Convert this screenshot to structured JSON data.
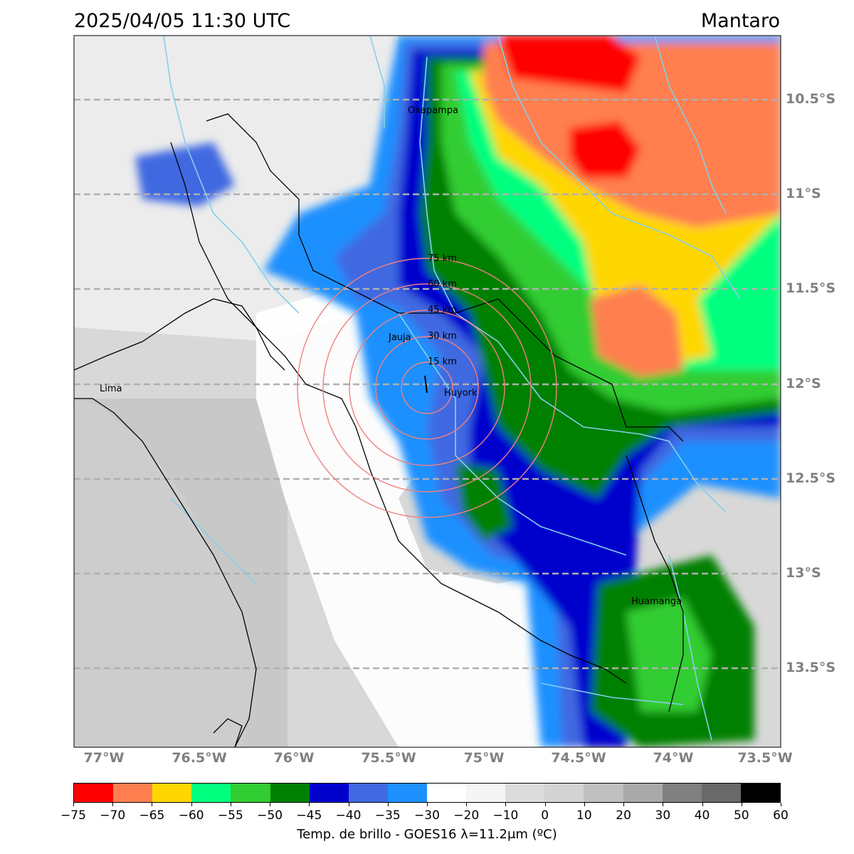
{
  "header": {
    "title": "2025/04/05 11:30 UTC",
    "region": "Mantaro"
  },
  "axes": {
    "lat_labels": [
      "10.5°S",
      "11°S",
      "11.5°S",
      "12°S",
      "12.5°S",
      "13°S",
      "13.5°S"
    ],
    "lon_labels": [
      "77°W",
      "76.5°W",
      "76°W",
      "75.5°W",
      "75°W",
      "74.5°W",
      "74°W",
      "73.5°W"
    ],
    "grid": "dashed"
  },
  "places": [
    {
      "name": "Oxapampa"
    },
    {
      "name": "Jauja"
    },
    {
      "name": "Huyork"
    },
    {
      "name": "Lima"
    },
    {
      "name": "Huamanga"
    }
  ],
  "range_rings": [
    "15 km",
    "30 km",
    "45 km",
    "60 km",
    "75 km"
  ],
  "colorbar": {
    "ticks": [
      "−75",
      "−70",
      "−65",
      "−60",
      "−55",
      "−50",
      "−45",
      "−40",
      "−35",
      "−30",
      "−20",
      "−10",
      "0",
      "10",
      "20",
      "30",
      "40",
      "50",
      "60"
    ],
    "colors": [
      "#ff0000",
      "#ff7f50",
      "#ffd700",
      "#00ff7f",
      "#32cd32",
      "#008000",
      "#0000cd",
      "#4169e1",
      "#1e90ff",
      "#ffffff",
      "#f5f5f5",
      "#dcdcdc",
      "#d3d3d3",
      "#c0c0c0",
      "#a9a9a9",
      "#808080",
      "#696969",
      "#000000"
    ],
    "label": "Temp. de brillo - GOES16 λ=11.2μm (ºC)"
  }
}
